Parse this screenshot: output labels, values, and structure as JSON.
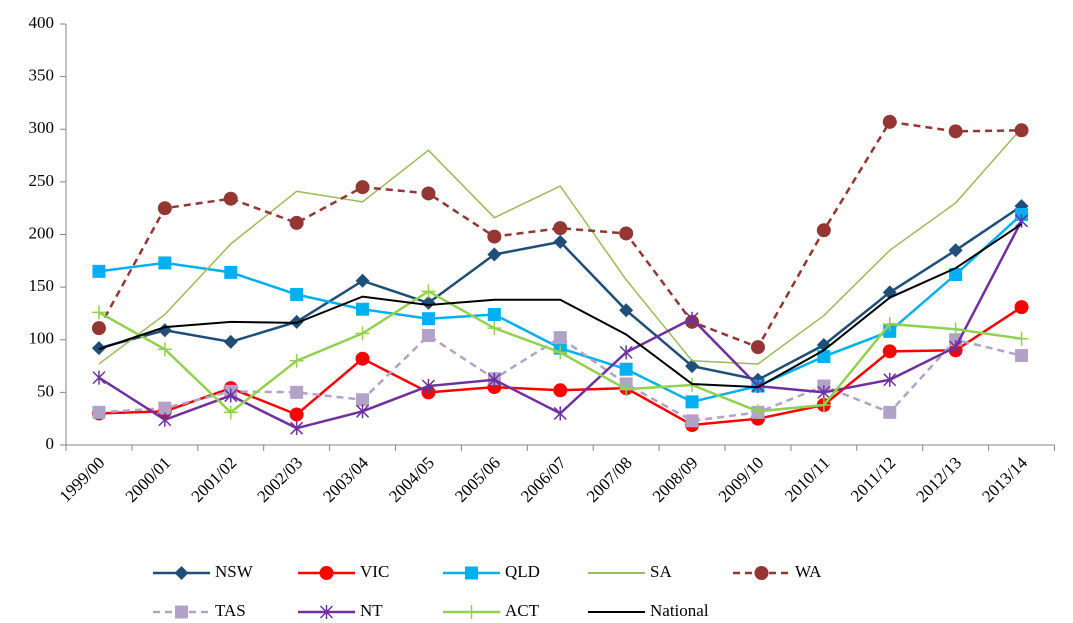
{
  "chart_data": {
    "type": "line",
    "categories": [
      "1999/00",
      "2000/01",
      "2001/02",
      "2002/03",
      "2003/04",
      "2004/05",
      "2005/06",
      "2006/07",
      "2007/08",
      "2008/09",
      "2009/10",
      "2010/11",
      "2011/12",
      "2012/13",
      "2013/14"
    ],
    "ylim": [
      0,
      400
    ],
    "yticks": [
      0,
      50,
      100,
      150,
      200,
      250,
      300,
      350,
      400
    ],
    "grid": false,
    "legend": "bottom",
    "series": [
      {
        "name": "NSW",
        "color": "#1f4e79",
        "marker": "diamond",
        "dash": false,
        "values": [
          92,
          109,
          98,
          117,
          156,
          135,
          181,
          193,
          128,
          75,
          62,
          95,
          145,
          185,
          227
        ]
      },
      {
        "name": "VIC",
        "color": "#ff0000",
        "marker": "circle",
        "dash": false,
        "values": [
          30,
          32,
          54,
          29,
          82,
          50,
          55,
          52,
          54,
          19,
          25,
          38,
          89,
          90,
          131
        ]
      },
      {
        "name": "QLD",
        "color": "#00b0f0",
        "marker": "square",
        "dash": false,
        "values": [
          165,
          173,
          164,
          143,
          129,
          120,
          124,
          92,
          72,
          41,
          56,
          84,
          108,
          162,
          219
        ]
      },
      {
        "name": "SA",
        "color": "#9bbb59",
        "marker": "none",
        "dash": false,
        "values": [
          77,
          124,
          191,
          241,
          231,
          280,
          216,
          246,
          157,
          80,
          77,
          123,
          185,
          230,
          301
        ]
      },
      {
        "name": "WA",
        "color": "#943634",
        "marker": "circle",
        "dash": true,
        "values": [
          111,
          225,
          234,
          211,
          245,
          239,
          198,
          206,
          201,
          117,
          93,
          204,
          307,
          298,
          299
        ]
      },
      {
        "name": "TAS",
        "color": "#b3a2c7",
        "marker": "square",
        "dash": true,
        "values": [
          31,
          35,
          51,
          50,
          43,
          104,
          63,
          102,
          58,
          23,
          31,
          56,
          31,
          100,
          85
        ]
      },
      {
        "name": "NT",
        "color": "#7030a0",
        "marker": "star",
        "dash": false,
        "values": [
          64,
          24,
          47,
          16,
          32,
          56,
          62,
          30,
          88,
          120,
          56,
          50,
          62,
          93,
          213
        ]
      },
      {
        "name": "ACT",
        "color": "#92d050",
        "marker": "plus",
        "dash": false,
        "values": [
          126,
          91,
          31,
          80,
          106,
          146,
          111,
          88,
          53,
          57,
          32,
          38,
          115,
          110,
          101
        ]
      },
      {
        "name": "National",
        "color": "#000000",
        "marker": "none",
        "dash": false,
        "values": [
          91,
          112,
          117,
          116,
          141,
          133,
          138,
          138,
          105,
          58,
          55,
          90,
          140,
          168,
          210
        ]
      }
    ]
  }
}
